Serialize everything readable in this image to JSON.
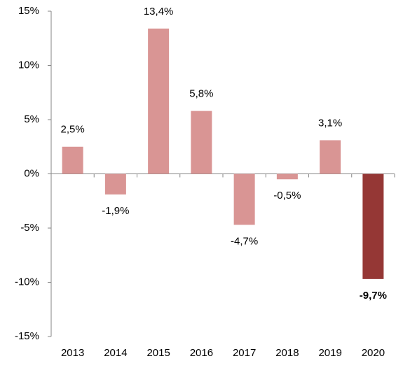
{
  "chart_data": {
    "type": "bar",
    "categories": [
      "2013",
      "2014",
      "2015",
      "2016",
      "2017",
      "2018",
      "2019",
      "2020"
    ],
    "values": [
      2.5,
      -1.9,
      13.4,
      5.8,
      -4.7,
      -0.5,
      3.1,
      -9.7
    ],
    "value_labels": [
      "2,5%",
      "-1,9%",
      "13,4%",
      "5,8%",
      "-4,7%",
      "-0,5%",
      "3,1%",
      "-9,7%"
    ],
    "colors": [
      "#d99594",
      "#d99594",
      "#d99594",
      "#d99594",
      "#d99594",
      "#d99594",
      "#d99594",
      "#953735"
    ],
    "label_bold": [
      false,
      false,
      false,
      false,
      false,
      false,
      false,
      true
    ],
    "ylim": [
      -15,
      15
    ],
    "yticks": [
      {
        "value": -15,
        "label": "-15%"
      },
      {
        "value": -10,
        "label": "-10%"
      },
      {
        "value": -5,
        "label": "-5%"
      },
      {
        "value": 0,
        "label": "0%"
      },
      {
        "value": 5,
        "label": "5%"
      },
      {
        "value": 10,
        "label": "10%"
      },
      {
        "value": 15,
        "label": "15%"
      }
    ],
    "grid": false
  }
}
